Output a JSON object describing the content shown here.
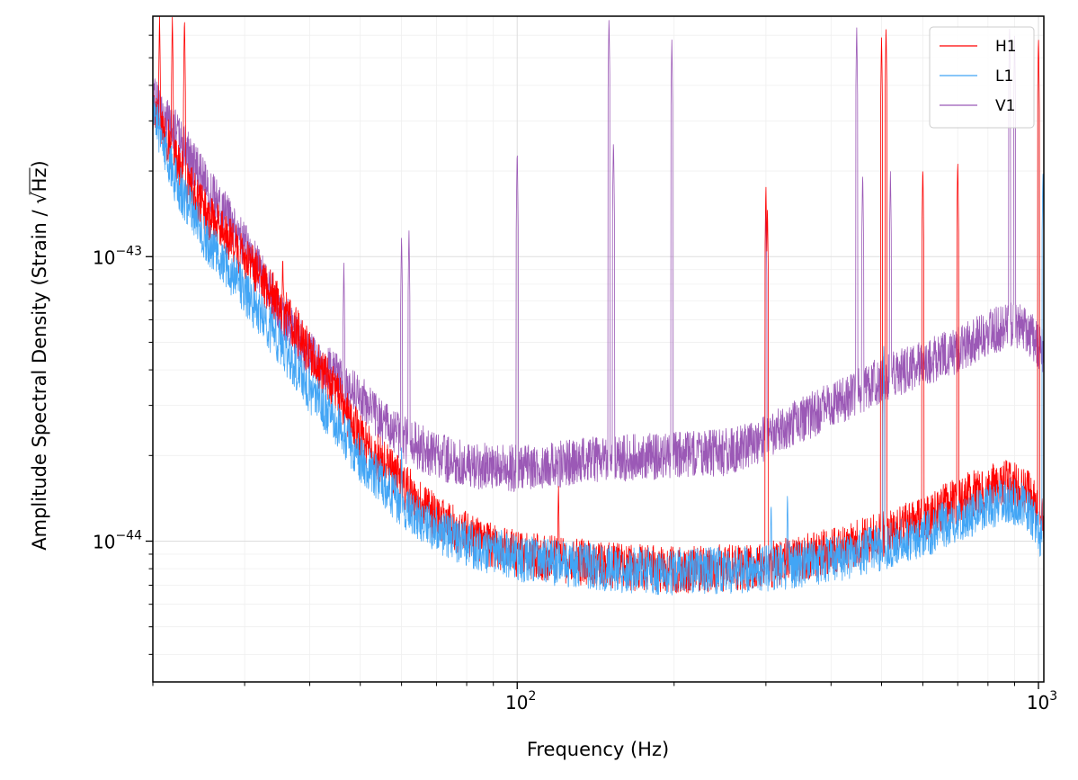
{
  "chart_data": {
    "type": "line",
    "xlabel": "Frequency (Hz)",
    "ylabel_prefix": "Amplitude Spectral Density (Strain / ",
    "ylabel_radicand": "Hz",
    "ylabel_suffix": ")",
    "x_scale": "log",
    "y_scale": "log",
    "xlim": [
      20,
      1024
    ],
    "ylim": [
      3.2e-45,
      7e-43
    ],
    "x_ticks": [
      {
        "value": 100,
        "base": "10",
        "exp": "2"
      },
      {
        "value": 1000,
        "base": "10",
        "exp": "3"
      }
    ],
    "y_ticks": [
      {
        "value": 1e-44,
        "base": "10",
        "exp": "−44"
      },
      {
        "value": 1e-43,
        "base": "10",
        "exp": "−43"
      }
    ],
    "grid": true,
    "legend_position": "top-right",
    "series": [
      {
        "name": "H1",
        "color": "#ff0000",
        "floor": [
          [
            20,
            3.6e-43
          ],
          [
            22,
            2.2e-43
          ],
          [
            25,
            1.45e-43
          ],
          [
            30,
            1e-43
          ],
          [
            35,
            6.8e-44
          ],
          [
            40,
            4.6e-44
          ],
          [
            45,
            3.3e-44
          ],
          [
            50,
            2.3e-44
          ],
          [
            60,
            1.6e-44
          ],
          [
            70,
            1.2e-44
          ],
          [
            80,
            1.05e-44
          ],
          [
            100,
            9e-45
          ],
          [
            150,
            8.2e-45
          ],
          [
            200,
            7.9e-45
          ],
          [
            300,
            8.2e-45
          ],
          [
            400,
            9.2e-45
          ],
          [
            500,
            1.05e-44
          ],
          [
            600,
            1.2e-44
          ],
          [
            700,
            1.4e-44
          ],
          [
            800,
            1.55e-44
          ],
          [
            880,
            1.62e-44
          ],
          [
            950,
            1.5e-44
          ],
          [
            1024,
            1.2e-44
          ]
        ],
        "lines": [
          [
            20.6,
            7e-43
          ],
          [
            21.8,
            7e-43
          ],
          [
            23,
            7e-43
          ],
          [
            26,
            1.45e-43
          ],
          [
            31,
            1.05e-43
          ],
          [
            35.5,
            1.03e-43
          ],
          [
            60,
            2.1e-44
          ],
          [
            120,
            1.6e-44
          ],
          [
            300,
            1.8e-43
          ],
          [
            302,
            1.5e-43
          ],
          [
            500,
            6e-43
          ],
          [
            510,
            6.5e-43
          ],
          [
            600,
            2.1e-43
          ],
          [
            700,
            2.2e-43
          ],
          [
            1000,
            6e-43
          ]
        ]
      },
      {
        "name": "L1",
        "color": "#42a5f5",
        "floor": [
          [
            20,
            3.2e-43
          ],
          [
            22,
            1.9e-43
          ],
          [
            25,
            1.2e-43
          ],
          [
            30,
            7.5e-44
          ],
          [
            35,
            5e-44
          ],
          [
            40,
            3.4e-44
          ],
          [
            45,
            2.6e-44
          ],
          [
            50,
            1.95e-44
          ],
          [
            60,
            1.35e-44
          ],
          [
            70,
            1.1e-44
          ],
          [
            80,
            9.8e-45
          ],
          [
            100,
            8.7e-45
          ],
          [
            150,
            8e-45
          ],
          [
            200,
            7.8e-45
          ],
          [
            300,
            8e-45
          ],
          [
            400,
            8.6e-45
          ],
          [
            500,
            9.5e-45
          ],
          [
            600,
            1.05e-44
          ],
          [
            700,
            1.2e-44
          ],
          [
            800,
            1.3e-44
          ],
          [
            880,
            1.4e-44
          ],
          [
            950,
            1.3e-44
          ],
          [
            1024,
            1e-44
          ]
        ],
        "lines": [
          [
            60,
            2.2e-44
          ],
          [
            307,
            1.4e-44
          ],
          [
            330,
            1.5e-44
          ],
          [
            505,
            5e-44
          ],
          [
            1020,
            2e-43
          ]
        ]
      },
      {
        "name": "V1",
        "color": "#9b59b6",
        "floor": [
          [
            20,
            3.6e-43
          ],
          [
            22,
            2.8e-43
          ],
          [
            25,
            1.85e-43
          ],
          [
            30,
            1.1e-43
          ],
          [
            35,
            6.5e-44
          ],
          [
            40,
            4.5e-44
          ],
          [
            45,
            3.8e-44
          ],
          [
            50,
            3.2e-44
          ],
          [
            55,
            2.6e-44
          ],
          [
            60,
            2.3e-44
          ],
          [
            70,
            2e-44
          ],
          [
            80,
            1.85e-44
          ],
          [
            100,
            1.8e-44
          ],
          [
            150,
            1.95e-44
          ],
          [
            200,
            2e-44
          ],
          [
            250,
            2.05e-44
          ],
          [
            300,
            2.3e-44
          ],
          [
            400,
            3e-44
          ],
          [
            500,
            3.7e-44
          ],
          [
            600,
            4.2e-44
          ],
          [
            700,
            4.7e-44
          ],
          [
            800,
            5.4e-44
          ],
          [
            880,
            5.8e-44
          ],
          [
            950,
            5.5e-44
          ],
          [
            1024,
            4.6e-44
          ]
        ],
        "lines": [
          [
            46.5,
            9.5e-44
          ],
          [
            60,
            1.2e-43
          ],
          [
            62,
            1.25e-43
          ],
          [
            100,
            2.4e-43
          ],
          [
            150,
            7e-43
          ],
          [
            153,
            2.6e-43
          ],
          [
            198,
            5.8e-43
          ],
          [
            300,
            1.5e-43
          ],
          [
            448,
            6.5e-43
          ],
          [
            460,
            2e-43
          ],
          [
            520,
            2e-43
          ],
          [
            880,
            6.5e-43
          ],
          [
            900,
            6e-43
          ]
        ]
      }
    ]
  }
}
